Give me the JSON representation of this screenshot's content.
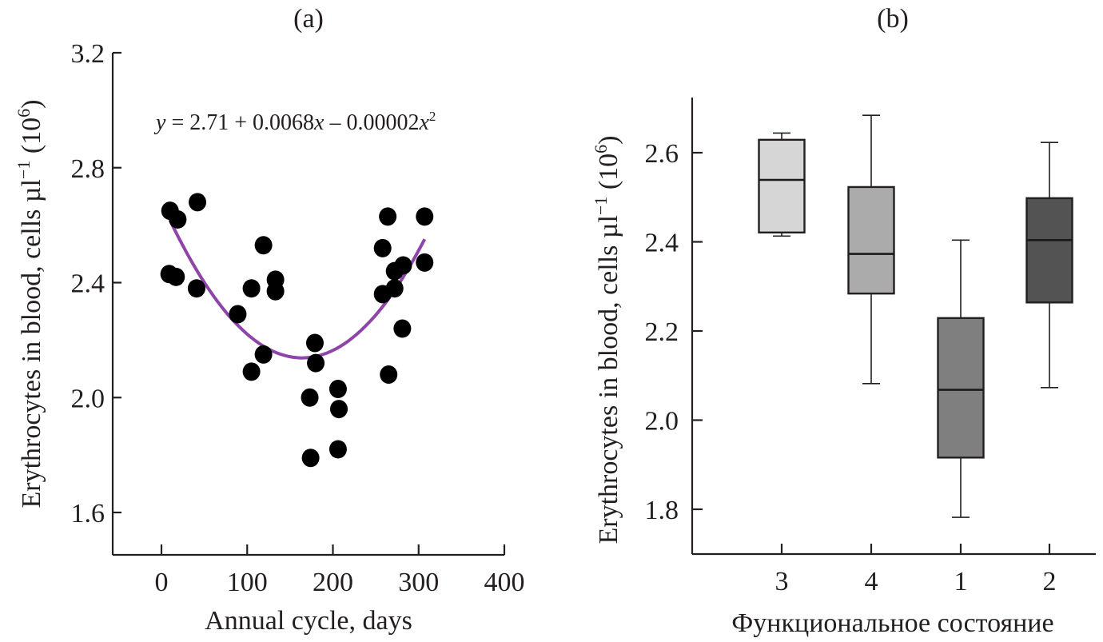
{
  "figure": {
    "panel_a_label": "(a)",
    "panel_b_label": "(b)"
  },
  "chart_data": [
    {
      "type": "scatter",
      "panel": "(a)",
      "title": "(a)",
      "xlabel": "Annual cycle, days",
      "ylabel": "Erythrocytes in blood, cells µl⁻¹ (10⁶)",
      "ylabel_parts": {
        "main": "Erythrocytes in blood, cells µl",
        "sup1": "−1",
        "mid": " (10",
        "sup2": "6",
        "end": ")"
      },
      "xlim": [
        -57,
        400
      ],
      "ylim": [
        1.45,
        3.2
      ],
      "x_ticks": [
        0,
        100,
        200,
        300,
        400
      ],
      "x_tick_labels": [
        "0",
        "100",
        "200",
        "300",
        "400"
      ],
      "y_ticks": [
        1.6,
        2.0,
        2.4,
        2.8,
        3.2
      ],
      "y_tick_labels": [
        "1.6",
        "2.0",
        "2.4",
        "2.8",
        "3.2"
      ],
      "grid": false,
      "annotation": {
        "y": "y",
        "eq1": " = 2.71 + 0.0068",
        "x1": "x",
        "eq2": " – 0.00002",
        "x2": "x",
        "sup": "2"
      },
      "points": [
        {
          "x": 10,
          "y": 2.65
        },
        {
          "x": 19,
          "y": 2.62
        },
        {
          "x": 42,
          "y": 2.68
        },
        {
          "x": 9,
          "y": 2.43
        },
        {
          "x": 17,
          "y": 2.42
        },
        {
          "x": 41,
          "y": 2.38
        },
        {
          "x": 89,
          "y": 2.29
        },
        {
          "x": 105,
          "y": 2.38
        },
        {
          "x": 119,
          "y": 2.53
        },
        {
          "x": 133,
          "y": 2.41
        },
        {
          "x": 133,
          "y": 2.37
        },
        {
          "x": 119,
          "y": 2.15
        },
        {
          "x": 105,
          "y": 2.09
        },
        {
          "x": 179,
          "y": 2.19
        },
        {
          "x": 180,
          "y": 2.12
        },
        {
          "x": 173,
          "y": 2.0
        },
        {
          "x": 206,
          "y": 2.03
        },
        {
          "x": 207,
          "y": 1.96
        },
        {
          "x": 174,
          "y": 1.79
        },
        {
          "x": 206,
          "y": 1.82
        },
        {
          "x": 264,
          "y": 2.63
        },
        {
          "x": 307,
          "y": 2.63
        },
        {
          "x": 258,
          "y": 2.52
        },
        {
          "x": 282,
          "y": 2.46
        },
        {
          "x": 272,
          "y": 2.44
        },
        {
          "x": 258,
          "y": 2.36
        },
        {
          "x": 272,
          "y": 2.38
        },
        {
          "x": 307,
          "y": 2.47
        },
        {
          "x": 281,
          "y": 2.24
        },
        {
          "x": 265,
          "y": 2.08
        }
      ],
      "fit_curve": {
        "color": "#8e44a8",
        "x_range": [
          10,
          307
        ],
        "vertex_x": 164,
        "vertex_y": 2.138,
        "a": 2.02e-05
      },
      "point_color": "#000000"
    },
    {
      "type": "box",
      "panel": "(b)",
      "title": "(b)",
      "xlabel": "Функциональное состояние",
      "ylabel": "Erythrocytes in blood, cells µl⁻¹ (10⁶)",
      "ylabel_parts": {
        "main": "Erythrocytes in blood, cells µl",
        "sup1": "−1",
        "mid": " (10",
        "sup2": "6",
        "end": ")"
      },
      "ylim": [
        1.7,
        2.72
      ],
      "y_ticks": [
        1.8,
        2.0,
        2.2,
        2.4,
        2.6
      ],
      "y_tick_labels": [
        "1.8",
        "2.0",
        "2.2",
        "2.4",
        "2.6"
      ],
      "grid": false,
      "categories": [
        "3",
        "4",
        "1",
        "2"
      ],
      "boxes": [
        {
          "category": "3",
          "whisker_low": 2.413,
          "q1": 2.421,
          "median": 2.539,
          "q3": 2.629,
          "whisker_high": 2.644,
          "color": "#d6d6d6"
        },
        {
          "category": "4",
          "whisker_low": 2.082,
          "q1": 2.284,
          "median": 2.373,
          "q3": 2.523,
          "whisker_high": 2.684,
          "color": "#ababab"
        },
        {
          "category": "1",
          "whisker_low": 1.782,
          "q1": 1.916,
          "median": 2.068,
          "q3": 2.229,
          "whisker_high": 2.404,
          "color": "#7f7f7f"
        },
        {
          "category": "2",
          "whisker_low": 2.073,
          "q1": 2.264,
          "median": 2.404,
          "q3": 2.498,
          "whisker_high": 2.623,
          "color": "#535353"
        }
      ]
    }
  ]
}
